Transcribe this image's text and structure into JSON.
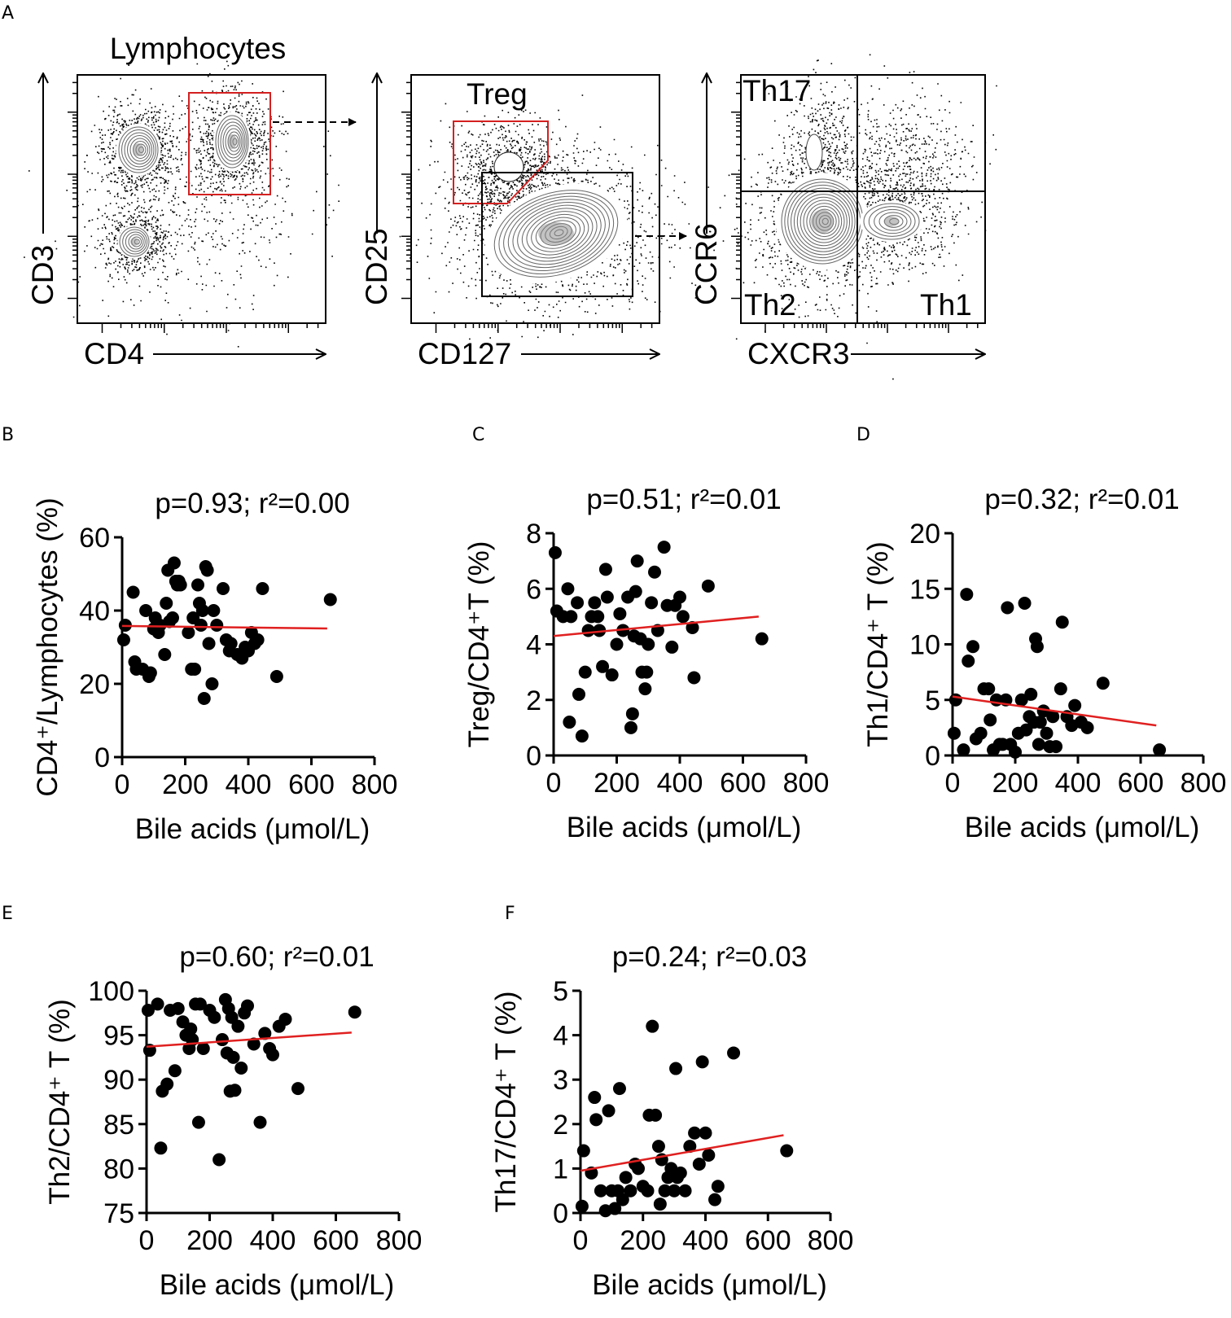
{
  "panel_letters": {
    "A": "A",
    "B": "B",
    "C": "C",
    "D": "D",
    "E": "E",
    "F": "F"
  },
  "flow": [
    {
      "id": "f1",
      "title": "Lymphocytes",
      "xlabel": "CD4",
      "ylabel": "CD3",
      "gates": []
    },
    {
      "id": "f2",
      "title": "",
      "xlabel": "CD127",
      "ylabel": "CD25",
      "gates": [
        "Treg"
      ]
    },
    {
      "id": "f3",
      "title": "",
      "xlabel": "CXCR3",
      "ylabel": "CCR6",
      "gates": [
        "Th17",
        "Th2",
        "Th1"
      ]
    }
  ],
  "colors": {
    "point": "#000000",
    "fit": "#e02020",
    "gate_red": "#d42020",
    "gate_black": "#000000",
    "contour": "#666666"
  },
  "chart_data": [
    {
      "id": "B",
      "type": "scatter",
      "title": "p=0.93; r²=0.00",
      "xlabel": "Bile acids (μmol/L)",
      "ylabel": "CD4⁺/Lymphocytes (%)",
      "xlim": [
        0,
        800
      ],
      "ylim": [
        0,
        60
      ],
      "xticks": [
        "0",
        "200",
        "400",
        "600",
        "800"
      ],
      "yticks": [
        "0",
        "20",
        "40",
        "60"
      ],
      "fit": [
        [
          0,
          35.8
        ],
        [
          650,
          35.1
        ]
      ],
      "points": [
        [
          5,
          32
        ],
        [
          10,
          36
        ],
        [
          35,
          45
        ],
        [
          40,
          26
        ],
        [
          45,
          24
        ],
        [
          65,
          24
        ],
        [
          75,
          40
        ],
        [
          85,
          22
        ],
        [
          90,
          23
        ],
        [
          100,
          35
        ],
        [
          105,
          38
        ],
        [
          115,
          34
        ],
        [
          120,
          36
        ],
        [
          135,
          28
        ],
        [
          140,
          42
        ],
        [
          145,
          51
        ],
        [
          150,
          37
        ],
        [
          160,
          38
        ],
        [
          165,
          53
        ],
        [
          170,
          48
        ],
        [
          175,
          47
        ],
        [
          180,
          48
        ],
        [
          185,
          47
        ],
        [
          210,
          34
        ],
        [
          220,
          24
        ],
        [
          225,
          38
        ],
        [
          230,
          24
        ],
        [
          240,
          47
        ],
        [
          245,
          42
        ],
        [
          250,
          36
        ],
        [
          255,
          40
        ],
        [
          260,
          16
        ],
        [
          265,
          52
        ],
        [
          270,
          51
        ],
        [
          275,
          31
        ],
        [
          285,
          20
        ],
        [
          290,
          40
        ],
        [
          300,
          36
        ],
        [
          320,
          46
        ],
        [
          330,
          32
        ],
        [
          340,
          29
        ],
        [
          345,
          31
        ],
        [
          365,
          28
        ],
        [
          380,
          27
        ],
        [
          390,
          30
        ],
        [
          400,
          29
        ],
        [
          410,
          34
        ],
        [
          420,
          31
        ],
        [
          430,
          32
        ],
        [
          445,
          46
        ],
        [
          490,
          22
        ],
        [
          660,
          43
        ]
      ]
    },
    {
      "id": "C",
      "type": "scatter",
      "title": "p=0.51; r²=0.01",
      "xlabel": "Bile acids (μmol/L)",
      "ylabel": "Treg/CD4⁺T (%)",
      "xlim": [
        0,
        800
      ],
      "ylim": [
        0,
        8
      ],
      "xticks": [
        "0",
        "200",
        "400",
        "600",
        "800"
      ],
      "yticks": [
        "0",
        "2",
        "4",
        "6",
        "8"
      ],
      "fit": [
        [
          0,
          4.3
        ],
        [
          650,
          5.0
        ]
      ],
      "points": [
        [
          5,
          7.3
        ],
        [
          10,
          5.2
        ],
        [
          30,
          5.0
        ],
        [
          45,
          6.0
        ],
        [
          50,
          1.2
        ],
        [
          55,
          5.0
        ],
        [
          75,
          5.5
        ],
        [
          80,
          2.2
        ],
        [
          90,
          0.7
        ],
        [
          100,
          3.0
        ],
        [
          110,
          4.5
        ],
        [
          120,
          5.0
        ],
        [
          130,
          5.5
        ],
        [
          140,
          5.0
        ],
        [
          145,
          4.5
        ],
        [
          155,
          3.2
        ],
        [
          165,
          6.7
        ],
        [
          170,
          5.7
        ],
        [
          185,
          2.9
        ],
        [
          200,
          4.0
        ],
        [
          210,
          5.1
        ],
        [
          220,
          4.5
        ],
        [
          235,
          5.7
        ],
        [
          245,
          1.0
        ],
        [
          250,
          1.5
        ],
        [
          255,
          4.3
        ],
        [
          260,
          5.9
        ],
        [
          265,
          7.0
        ],
        [
          275,
          4.2
        ],
        [
          280,
          3.0
        ],
        [
          290,
          2.4
        ],
        [
          295,
          3.0
        ],
        [
          300,
          4.0
        ],
        [
          310,
          5.5
        ],
        [
          320,
          6.6
        ],
        [
          330,
          4.5
        ],
        [
          350,
          7.5
        ],
        [
          360,
          5.4
        ],
        [
          375,
          3.9
        ],
        [
          385,
          5.4
        ],
        [
          400,
          5.7
        ],
        [
          410,
          5.0
        ],
        [
          440,
          4.6
        ],
        [
          445,
          2.8
        ],
        [
          490,
          6.1
        ],
        [
          660,
          4.2
        ]
      ]
    },
    {
      "id": "D",
      "type": "scatter",
      "title": "p=0.32; r²=0.01",
      "xlabel": "Bile acids (μmol/L)",
      "ylabel": "Th1/CD4⁺ T (%)",
      "xlim": [
        0,
        800
      ],
      "ylim": [
        0,
        20
      ],
      "xticks": [
        "0",
        "200",
        "400",
        "600",
        "800"
      ],
      "yticks": [
        "0",
        "5",
        "10",
        "15",
        "20"
      ],
      "fit": [
        [
          0,
          5.3
        ],
        [
          650,
          2.7
        ]
      ],
      "points": [
        [
          5,
          2.0
        ],
        [
          10,
          5.0
        ],
        [
          35,
          0.5
        ],
        [
          45,
          14.5
        ],
        [
          50,
          8.5
        ],
        [
          65,
          9.8
        ],
        [
          75,
          1.5
        ],
        [
          90,
          2.0
        ],
        [
          100,
          6.0
        ],
        [
          115,
          6.0
        ],
        [
          120,
          3.2
        ],
        [
          130,
          0.5
        ],
        [
          140,
          5.0
        ],
        [
          150,
          1.0
        ],
        [
          160,
          1.0
        ],
        [
          170,
          5.0
        ],
        [
          175,
          13.3
        ],
        [
          185,
          1.0
        ],
        [
          200,
          0.3
        ],
        [
          210,
          2.0
        ],
        [
          220,
          5.0
        ],
        [
          230,
          13.7
        ],
        [
          235,
          2.3
        ],
        [
          245,
          3.5
        ],
        [
          250,
          5.5
        ],
        [
          260,
          3.0
        ],
        [
          265,
          10.5
        ],
        [
          270,
          9.8
        ],
        [
          275,
          1.0
        ],
        [
          280,
          3.0
        ],
        [
          290,
          4.0
        ],
        [
          300,
          2.0
        ],
        [
          310,
          0.8
        ],
        [
          320,
          3.5
        ],
        [
          330,
          0.8
        ],
        [
          345,
          6.0
        ],
        [
          350,
          12.0
        ],
        [
          365,
          3.5
        ],
        [
          380,
          2.7
        ],
        [
          390,
          4.5
        ],
        [
          410,
          3.0
        ],
        [
          430,
          2.5
        ],
        [
          480,
          6.5
        ],
        [
          660,
          0.5
        ]
      ]
    },
    {
      "id": "E",
      "type": "scatter",
      "title": "p=0.60; r²=0.01",
      "xlabel": "Bile acids (μmol/L)",
      "ylabel": "Th2/CD4⁺ T (%)",
      "xlim": [
        0,
        800
      ],
      "ylim": [
        75,
        100
      ],
      "xticks": [
        "0",
        "200",
        "400",
        "600",
        "800"
      ],
      "yticks": [
        "75",
        "80",
        "85",
        "90",
        "95",
        "100"
      ],
      "fit": [
        [
          0,
          93.7
        ],
        [
          650,
          95.3
        ]
      ],
      "points": [
        [
          5,
          97.8
        ],
        [
          10,
          93.3
        ],
        [
          35,
          98.5
        ],
        [
          45,
          82.3
        ],
        [
          50,
          88.7
        ],
        [
          65,
          89.5
        ],
        [
          75,
          97.8
        ],
        [
          90,
          91.0
        ],
        [
          100,
          98.0
        ],
        [
          115,
          96.5
        ],
        [
          125,
          95.0
        ],
        [
          135,
          93.5
        ],
        [
          140,
          95.7
        ],
        [
          145,
          94.5
        ],
        [
          155,
          98.5
        ],
        [
          165,
          85.2
        ],
        [
          170,
          98.5
        ],
        [
          180,
          93.5
        ],
        [
          200,
          97.8
        ],
        [
          215,
          97.0
        ],
        [
          230,
          81.0
        ],
        [
          240,
          94.5
        ],
        [
          250,
          99.0
        ],
        [
          255,
          93.0
        ],
        [
          260,
          98.0
        ],
        [
          265,
          88.7
        ],
        [
          270,
          97.0
        ],
        [
          275,
          92.5
        ],
        [
          280,
          88.8
        ],
        [
          290,
          96.0
        ],
        [
          300,
          91.3
        ],
        [
          310,
          97.5
        ],
        [
          320,
          98.3
        ],
        [
          340,
          94.0
        ],
        [
          360,
          85.2
        ],
        [
          375,
          95.2
        ],
        [
          390,
          93.5
        ],
        [
          400,
          92.8
        ],
        [
          420,
          96.0
        ],
        [
          440,
          96.8
        ],
        [
          480,
          89.0
        ],
        [
          660,
          97.6
        ]
      ]
    },
    {
      "id": "F",
      "type": "scatter",
      "title": "p=0.24; r²=0.03",
      "xlabel": "Bile acids (μmol/L)",
      "ylabel": "Th17/CD4⁺ T (%)",
      "xlim": [
        0,
        800
      ],
      "ylim": [
        0,
        5
      ],
      "xticks": [
        "0",
        "200",
        "400",
        "600",
        "800"
      ],
      "yticks": [
        "0",
        "1",
        "2",
        "3",
        "4",
        "5"
      ],
      "fit": [
        [
          0,
          0.95
        ],
        [
          650,
          1.75
        ]
      ],
      "points": [
        [
          5,
          0.15
        ],
        [
          10,
          1.4
        ],
        [
          35,
          0.9
        ],
        [
          45,
          2.6
        ],
        [
          50,
          2.1
        ],
        [
          65,
          0.5
        ],
        [
          80,
          0.05
        ],
        [
          90,
          2.3
        ],
        [
          100,
          0.5
        ],
        [
          110,
          0.1
        ],
        [
          120,
          0.5
        ],
        [
          125,
          2.8
        ],
        [
          135,
          0.3
        ],
        [
          145,
          0.8
        ],
        [
          160,
          0.5
        ],
        [
          175,
          1.1
        ],
        [
          185,
          1.0
        ],
        [
          200,
          0.6
        ],
        [
          215,
          0.5
        ],
        [
          220,
          2.2
        ],
        [
          230,
          4.2
        ],
        [
          240,
          2.2
        ],
        [
          250,
          1.5
        ],
        [
          255,
          0.2
        ],
        [
          260,
          1.2
        ],
        [
          270,
          0.5
        ],
        [
          280,
          0.8
        ],
        [
          290,
          1.0
        ],
        [
          300,
          0.5
        ],
        [
          305,
          3.25
        ],
        [
          310,
          0.8
        ],
        [
          320,
          0.9
        ],
        [
          335,
          0.5
        ],
        [
          350,
          1.5
        ],
        [
          365,
          1.8
        ],
        [
          380,
          1.1
        ],
        [
          390,
          3.4
        ],
        [
          400,
          1.8
        ],
        [
          410,
          1.3
        ],
        [
          430,
          0.3
        ],
        [
          440,
          0.6
        ],
        [
          490,
          3.6
        ],
        [
          660,
          1.4
        ]
      ]
    }
  ]
}
